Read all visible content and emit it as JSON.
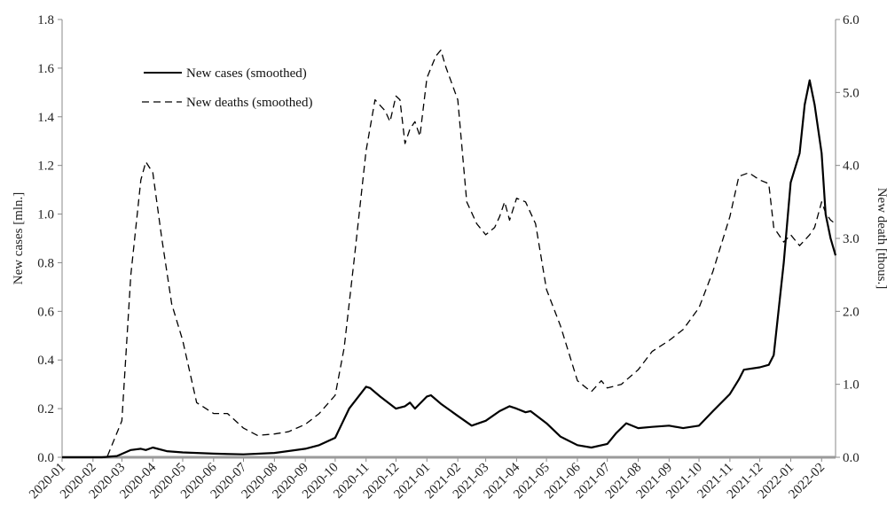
{
  "chart_data": {
    "type": "line",
    "title": "",
    "xlabel": "",
    "ylabel": "New cases [mln.]",
    "y2label": "New death [thous.]",
    "ylim": [
      0,
      1.8
    ],
    "y2lim": [
      0,
      6.0
    ],
    "grid": false,
    "legend": "top-left",
    "yticks": [
      "0.0",
      "0.2",
      "0.4",
      "0.6",
      "0.8",
      "1.0",
      "1.2",
      "1.4",
      "1.6",
      "1.8"
    ],
    "y2ticks": [
      "0.0",
      "1.0",
      "2.0",
      "3.0",
      "4.0",
      "5.0",
      "6.0"
    ],
    "xticks": [
      "2020-01",
      "2020-02",
      "2020-03",
      "2020-04",
      "2020-05",
      "2020-06",
      "2020-07",
      "2020-08",
      "2020-09",
      "2020-10",
      "2020-11",
      "2020-12",
      "2021-01",
      "2021-02",
      "2021-03",
      "2021-04",
      "2021-05",
      "2021-06",
      "2021-07",
      "2021-08",
      "2021-09",
      "2021-10",
      "2021-11",
      "2021-12",
      "2022-01",
      "2022-02"
    ],
    "series": [
      {
        "name": "New cases (smoothed)",
        "axis": "left",
        "style": "solid",
        "color": "#000000",
        "x": [
          "2020-01-01",
          "2020-02-10",
          "2020-02-25",
          "2020-03-10",
          "2020-03-20",
          "2020-03-25",
          "2020-04-01",
          "2020-04-15",
          "2020-05-01",
          "2020-06-01",
          "2020-07-01",
          "2020-08-01",
          "2020-09-01",
          "2020-09-15",
          "2020-10-01",
          "2020-10-15",
          "2020-11-01",
          "2020-11-05",
          "2020-11-15",
          "2020-12-01",
          "2020-12-10",
          "2020-12-15",
          "2020-12-20",
          "2021-01-01",
          "2021-01-05",
          "2021-01-15",
          "2021-02-01",
          "2021-02-15",
          "2021-03-01",
          "2021-03-15",
          "2021-03-25",
          "2021-04-01",
          "2021-04-10",
          "2021-04-15",
          "2021-05-01",
          "2021-05-15",
          "2021-06-01",
          "2021-06-15",
          "2021-07-01",
          "2021-07-10",
          "2021-07-20",
          "2021-08-01",
          "2021-08-15",
          "2021-09-01",
          "2021-09-15",
          "2021-10-01",
          "2021-10-15",
          "2021-11-01",
          "2021-11-10",
          "2021-11-15",
          "2021-12-01",
          "2021-12-10",
          "2021-12-15",
          "2021-12-25",
          "2022-01-01",
          "2022-01-10",
          "2022-01-15",
          "2022-01-20",
          "2022-01-25",
          "2022-02-01",
          "2022-02-05",
          "2022-02-10",
          "2022-02-15"
        ],
        "y": [
          0.0,
          0.0,
          0.005,
          0.03,
          0.035,
          0.03,
          0.04,
          0.025,
          0.02,
          0.015,
          0.012,
          0.018,
          0.035,
          0.05,
          0.08,
          0.2,
          0.29,
          0.285,
          0.25,
          0.2,
          0.21,
          0.225,
          0.2,
          0.25,
          0.255,
          0.22,
          0.17,
          0.13,
          0.15,
          0.19,
          0.21,
          0.2,
          0.185,
          0.19,
          0.14,
          0.085,
          0.05,
          0.04,
          0.055,
          0.1,
          0.14,
          0.12,
          0.125,
          0.13,
          0.12,
          0.13,
          0.19,
          0.26,
          0.32,
          0.36,
          0.37,
          0.38,
          0.42,
          0.8,
          1.13,
          1.25,
          1.45,
          1.55,
          1.45,
          1.25,
          1.0,
          0.9,
          0.83
        ]
      },
      {
        "name": "New deaths (smoothed)",
        "axis": "right",
        "style": "dashed",
        "color": "#000000",
        "x": [
          "2020-01-01",
          "2020-02-15",
          "2020-03-01",
          "2020-03-10",
          "2020-03-20",
          "2020-03-25",
          "2020-04-01",
          "2020-04-10",
          "2020-04-20",
          "2020-05-01",
          "2020-05-15",
          "2020-06-01",
          "2020-06-15",
          "2020-07-01",
          "2020-07-15",
          "2020-08-01",
          "2020-08-15",
          "2020-09-01",
          "2020-09-15",
          "2020-10-01",
          "2020-10-10",
          "2020-10-20",
          "2020-11-01",
          "2020-11-10",
          "2020-11-20",
          "2020-11-25",
          "2020-12-01",
          "2020-12-05",
          "2020-12-10",
          "2020-12-15",
          "2020-12-20",
          "2020-12-25",
          "2021-01-01",
          "2021-01-10",
          "2021-01-15",
          "2021-01-20",
          "2021-02-01",
          "2021-02-10",
          "2021-02-20",
          "2021-03-01",
          "2021-03-10",
          "2021-03-15",
          "2021-03-20",
          "2021-03-25",
          "2021-04-01",
          "2021-04-10",
          "2021-04-20",
          "2021-05-01",
          "2021-05-15",
          "2021-06-01",
          "2021-06-10",
          "2021-06-15",
          "2021-06-25",
          "2021-07-01",
          "2021-07-15",
          "2021-08-01",
          "2021-08-15",
          "2021-09-01",
          "2021-09-15",
          "2021-10-01",
          "2021-10-15",
          "2021-11-01",
          "2021-11-10",
          "2021-11-20",
          "2021-12-01",
          "2021-12-10",
          "2021-12-15",
          "2021-12-25",
          "2022-01-01",
          "2022-01-10",
          "2022-01-20",
          "2022-01-25",
          "2022-02-01",
          "2022-02-05",
          "2022-02-10",
          "2022-02-15"
        ],
        "y": [
          0.0,
          0.0,
          0.5,
          2.5,
          3.8,
          4.05,
          3.9,
          3.0,
          2.1,
          1.6,
          0.75,
          0.6,
          0.6,
          0.4,
          0.3,
          0.32,
          0.35,
          0.45,
          0.6,
          0.85,
          1.5,
          2.7,
          4.2,
          4.9,
          4.75,
          4.6,
          4.95,
          4.9,
          4.3,
          4.5,
          4.6,
          4.4,
          5.2,
          5.5,
          5.58,
          5.35,
          4.9,
          3.5,
          3.2,
          3.05,
          3.15,
          3.3,
          3.5,
          3.25,
          3.55,
          3.5,
          3.2,
          2.3,
          1.8,
          1.05,
          0.95,
          0.9,
          1.05,
          0.95,
          1.0,
          1.2,
          1.45,
          1.6,
          1.75,
          2.05,
          2.55,
          3.3,
          3.85,
          3.9,
          3.8,
          3.75,
          3.15,
          2.95,
          3.05,
          2.9,
          3.05,
          3.15,
          3.5,
          3.35,
          3.25,
          3.2
        ]
      }
    ]
  }
}
